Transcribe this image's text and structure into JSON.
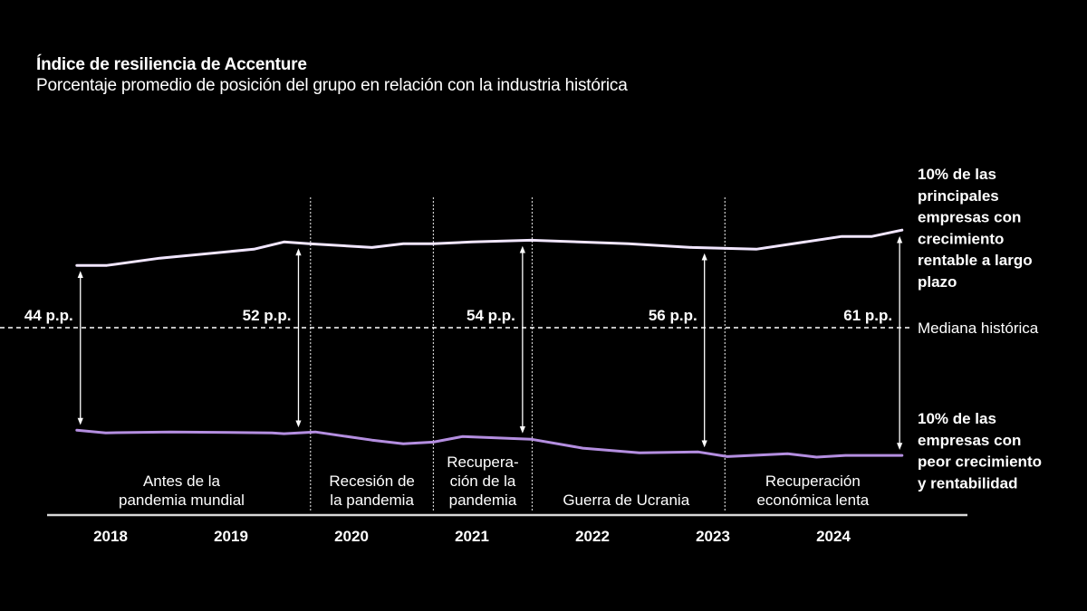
{
  "chart_data": {
    "type": "line",
    "title": "Índice de resiliencia de Accenture",
    "subtitle": "Porcentaje promedio de posición del grupo en relación con la industria histórica",
    "xlabel": "",
    "ylabel": "",
    "x_range": [
      2017.75,
      2024.7
    ],
    "y_range_relative_to_median": [
      -45,
      35
    ],
    "grid": false,
    "years": [
      "2018",
      "2019",
      "2020",
      "2021",
      "2022",
      "2023",
      "2024"
    ],
    "year_positions": [
      2018.0,
      2019.0,
      2020.0,
      2021.0,
      2022.0,
      2023.0,
      2024.0
    ],
    "median_label": "Mediana histórica",
    "series": [
      {
        "name": "10% de las principales empresas con crecimiento rentable a largo plazo",
        "label_lines": [
          "10% de las",
          "principales",
          "empresas con",
          "crecimiento",
          "rentable a largo",
          "plazo"
        ],
        "color": "#f1e6ff",
        "x": [
          2017.72,
          2017.97,
          2018.41,
          2019.19,
          2019.44,
          2019.65,
          2020.17,
          2020.43,
          2020.68,
          2021.0,
          2021.49,
          2022.3,
          2022.83,
          2023.36,
          2024.07,
          2024.32,
          2024.57
        ],
        "y": [
          21.5,
          21.5,
          24.0,
          27.1,
          29.6,
          29.0,
          27.7,
          29.0,
          29.0,
          29.6,
          30.2,
          29.0,
          27.7,
          27.1,
          31.5,
          31.5,
          33.7
        ]
      },
      {
        "name": "10% de las empresas con peor crecimiento y rentabilidad",
        "label_lines": [
          "10% de las",
          "empresas con",
          "peor crecimiento",
          "y rentabilidad"
        ],
        "color": "#b48ee0",
        "x": [
          2017.72,
          2017.96,
          2018.5,
          2019.34,
          2019.44,
          2019.7,
          2020.17,
          2020.43,
          2020.68,
          2020.92,
          2021.49,
          2021.92,
          2022.39,
          2022.88,
          2023.12,
          2023.62,
          2023.86,
          2024.1,
          2024.57
        ],
        "y": [
          -35.4,
          -36.3,
          -36.0,
          -36.3,
          -36.6,
          -36.0,
          -38.8,
          -40.1,
          -39.5,
          -37.6,
          -38.5,
          -41.6,
          -43.2,
          -42.9,
          -44.5,
          -43.5,
          -44.7,
          -44.1,
          -44.1
        ]
      }
    ],
    "gaps": [
      {
        "label": "44 p.p.",
        "x": 2017.75
      },
      {
        "label": "52 p.p.",
        "x": 2019.56
      },
      {
        "label": "54 p.p.",
        "x": 2021.42
      },
      {
        "label": "56 p.p.",
        "x": 2022.93
      },
      {
        "label": "61 p.p.",
        "x": 2024.55
      }
    ],
    "period_dividers": [
      2019.66,
      2020.68,
      2021.5,
      2023.1
    ],
    "periods": [
      {
        "lines": [
          "Antes de la",
          "pandemia mundial"
        ],
        "center": 2018.59
      },
      {
        "lines": [
          "Recesión de",
          "la pandemia"
        ],
        "center": 2020.17
      },
      {
        "lines": [
          "Recupera-",
          "ción de la",
          "pandemia"
        ],
        "center": 2021.09
      },
      {
        "lines": [
          "Guerra de Ucrania"
        ],
        "center": 2022.28
      },
      {
        "lines": [
          "Recuperación",
          "económica lenta"
        ],
        "center": 2023.83
      }
    ]
  }
}
